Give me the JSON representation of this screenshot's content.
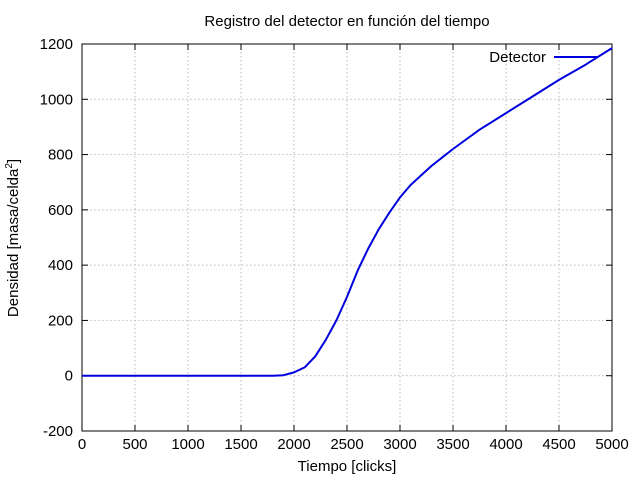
{
  "chart_data": {
    "type": "line",
    "title": "Registro del detector en función del tiempo",
    "xlabel": "Tiempo [clicks]",
    "ylabel_main": "Densidad [masa/celda",
    "ylabel_sup": "2",
    "ylabel_close": "]",
    "xlim": [
      0,
      5000
    ],
    "ylim": [
      -200,
      1200
    ],
    "xticks": [
      0,
      500,
      1000,
      1500,
      2000,
      2500,
      3000,
      3500,
      4000,
      4500,
      5000
    ],
    "yticks": [
      -200,
      0,
      200,
      400,
      600,
      800,
      1000,
      1200
    ],
    "grid": true,
    "legend_position": "top-right",
    "series": [
      {
        "name": "Detector",
        "color": "#0000dd",
        "x": [
          0,
          500,
          1000,
          1500,
          1800,
          1900,
          2000,
          2100,
          2200,
          2300,
          2400,
          2500,
          2600,
          2700,
          2800,
          2900,
          3000,
          3100,
          3200,
          3300,
          3400,
          3500,
          3750,
          4000,
          4250,
          4500,
          4750,
          5000
        ],
        "y": [
          0,
          0,
          0,
          0,
          0,
          2,
          12,
          30,
          70,
          130,
          200,
          285,
          380,
          460,
          530,
          590,
          645,
          690,
          725,
          760,
          790,
          820,
          890,
          950,
          1010,
          1070,
          1125,
          1185
        ]
      }
    ]
  }
}
